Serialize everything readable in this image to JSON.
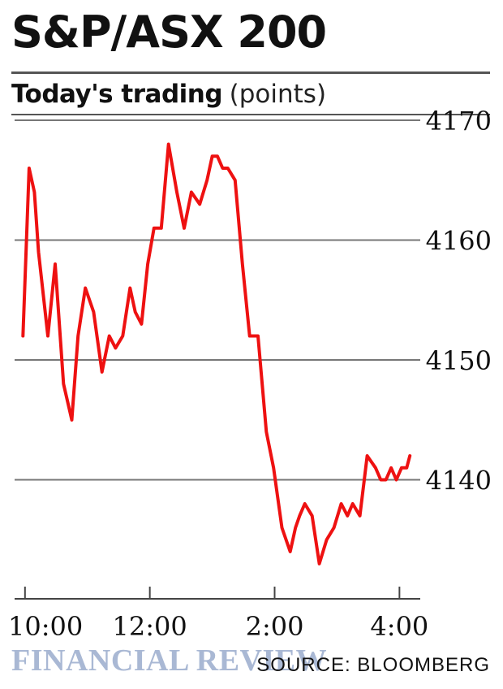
{
  "chart_data": {
    "type": "line",
    "title": "S&P/ASX 200",
    "subtitle": "Today's trading",
    "unit_label": "(points)",
    "x_ticks": [
      "10:00",
      "12:00",
      "2:00",
      "4:00"
    ],
    "y_ticks": [
      4140,
      4150,
      4160,
      4170
    ],
    "ylim": [
      4130,
      4170
    ],
    "grid": true,
    "colors": {
      "line": "#ee1111",
      "grid": "#777777",
      "brand": "#a9b8d4"
    },
    "series": [
      {
        "x": [
          "9:58",
          "10:04",
          "10:09",
          "10:13",
          "10:22",
          "10:29",
          "10:37",
          "10:45",
          "10:51",
          "10:58",
          "11:06",
          "11:14",
          "11:21",
          "11:27",
          "11:34",
          "11:41",
          "11:46",
          "11:52",
          "11:58",
          "12:04",
          "12:11",
          "12:18",
          "12:26",
          "12:33",
          "12:40",
          "12:48",
          "12:55",
          "1:00",
          "1:05",
          "1:10",
          "1:15",
          "1:22",
          "1:29",
          "1:36",
          "1:44",
          "1:52",
          "1:59",
          "2:07",
          "2:15",
          "2:20",
          "2:24",
          "2:29",
          "2:36",
          "2:43",
          "2:50",
          "2:57",
          "3:04",
          "3:10",
          "3:15",
          "3:22",
          "3:29",
          "3:37",
          "3:42",
          "3:47",
          "3:52",
          "3:57",
          "4:02",
          "4:07",
          "4:10"
        ],
        "y": [
          4152,
          4166,
          4164,
          4159,
          4152,
          4158,
          4148,
          4145,
          4152,
          4156,
          4154,
          4149,
          4152,
          4151,
          4152,
          4156,
          4154,
          4153,
          4158,
          4161,
          4161,
          4168,
          4164,
          4161,
          4164,
          4163,
          4165,
          4167,
          4167,
          4166,
          4166,
          4165,
          4158,
          4152,
          4152,
          4144,
          4141,
          4136,
          4134,
          4136,
          4137,
          4138,
          4137,
          4133,
          4135,
          4136,
          4138,
          4137,
          4138,
          4137,
          4142,
          4141,
          4140,
          4140,
          4141,
          4140,
          4141,
          4141,
          4142
        ]
      }
    ]
  },
  "footer": {
    "brand": "FINANCIAL REVIEW",
    "source": "SOURCE: BLOOMBERG"
  }
}
